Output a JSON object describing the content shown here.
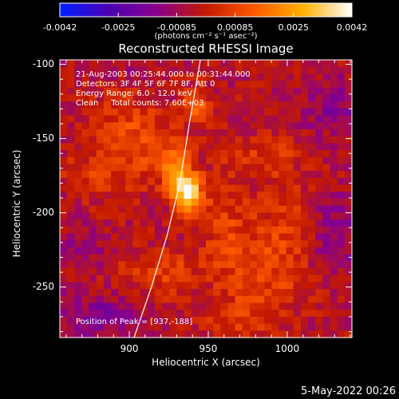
{
  "colorbar": {
    "ticks": [
      "-0.0042",
      "-0.0025",
      "-0.00085",
      "0.00085",
      "0.0025",
      "0.0042"
    ],
    "units": "(photons cm⁻² s⁻¹ asec⁻²)",
    "colors": [
      "#0020ff",
      "#4b00b4",
      "#8a008a",
      "#c31a00",
      "#ff5a00",
      "#ffb000",
      "#ffffff"
    ]
  },
  "chart_data": {
    "type": "heatmap",
    "title": "Reconstructed RHESSI Image",
    "xlabel": "Heliocentric X (arcsec)",
    "ylabel": "Heliocentric Y (arcsec)",
    "xlim": [
      856,
      1041
    ],
    "ylim": [
      -284,
      -97
    ],
    "x_ticks": [
      "900",
      "950",
      "1000"
    ],
    "x_tick_values": [
      900,
      950,
      1000
    ],
    "y_ticks": [
      "-100",
      "-150",
      "-200",
      "-250"
    ],
    "y_tick_values": [
      -100,
      -150,
      -200,
      -250
    ],
    "value_range": [
      -0.0042,
      0.0042
    ],
    "peak": {
      "x": 937,
      "y": -188
    },
    "info_lines": [
      "21-Aug-2003 00:25:44.000 to 00:31:44.000",
      "Detectors: 3F 4F 5F 6F 7F 8F, Att 0",
      "Energy Range: 6.0 - 12.0 keV",
      "Clean     Total counts: 7.60E+03"
    ],
    "peak_label": "Position of Peak = [937,-188]",
    "limb": [
      [
        945,
        -97
      ],
      [
        938,
        -140
      ],
      [
        932,
        -180
      ],
      [
        924,
        -215
      ],
      [
        914,
        -250
      ],
      [
        903,
        -284
      ]
    ],
    "sources": [
      {
        "x": 937,
        "y": -188,
        "sx": 6,
        "sy": 9,
        "amp": 0.0042
      },
      {
        "x": 930,
        "y": -170,
        "sx": 7,
        "sy": 12,
        "amp": 0.0022
      },
      {
        "x": 943,
        "y": -128,
        "sx": 5,
        "sy": 9,
        "amp": 0.0018
      },
      {
        "x": 902,
        "y": -150,
        "sx": 16,
        "sy": 22,
        "amp": 0.0014
      },
      {
        "x": 920,
        "y": -240,
        "sx": 18,
        "sy": 12,
        "amp": 0.0011
      },
      {
        "x": 985,
        "y": -240,
        "sx": 20,
        "sy": 22,
        "amp": 0.0012
      },
      {
        "x": 990,
        "y": -160,
        "sx": 15,
        "sy": 10,
        "amp": 0.0009
      },
      {
        "x": 1000,
        "y": -200,
        "sx": 12,
        "sy": 18,
        "amp": 0.0008
      },
      {
        "x": 968,
        "y": -270,
        "sx": 14,
        "sy": 8,
        "amp": 0.0008
      },
      {
        "x": 875,
        "y": -175,
        "sx": 12,
        "sy": 10,
        "amp": 0.0009
      },
      {
        "x": 960,
        "y": -200,
        "sx": 12,
        "sy": 25,
        "amp": 0.0009
      },
      {
        "x": 1030,
        "y": -130,
        "sx": 15,
        "sy": 12,
        "amp": -0.001
      },
      {
        "x": 880,
        "y": -270,
        "sx": 18,
        "sy": 10,
        "amp": -0.0012
      },
      {
        "x": 870,
        "y": -225,
        "sx": 10,
        "sy": 10,
        "amp": -0.0008
      },
      {
        "x": 1030,
        "y": -215,
        "sx": 12,
        "sy": 20,
        "amp": -0.0009
      },
      {
        "x": 900,
        "y": -105,
        "sx": 12,
        "sy": 8,
        "amp": -0.0005
      }
    ]
  },
  "timestamp": "5-May-2022 00:26"
}
